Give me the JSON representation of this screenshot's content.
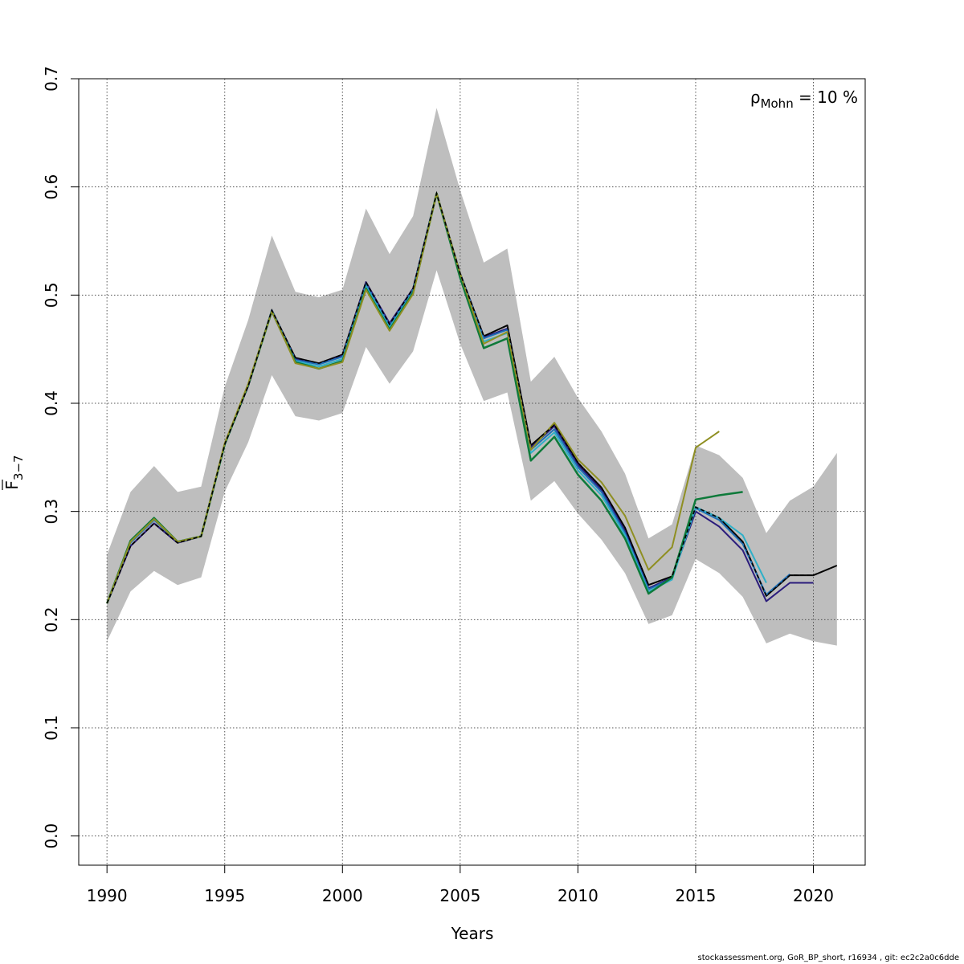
{
  "chart_data": {
    "type": "line",
    "xlabel": "Years",
    "ylabel": "F",
    "ylabel_subscript": "3−7",
    "xlim": [
      1988.8,
      2022.2
    ],
    "ylim": [
      -0.027,
      0.7
    ],
    "x_ticks": [
      1990,
      1995,
      2000,
      2005,
      2010,
      2015,
      2020
    ],
    "y_ticks": [
      0.0,
      0.1,
      0.2,
      0.3,
      0.4,
      0.5,
      0.6,
      0.7
    ],
    "x_tick_labels": [
      "1990",
      "1995",
      "2000",
      "2005",
      "2010",
      "2015",
      "2020"
    ],
    "y_tick_labels": [
      "0.0",
      "0.1",
      "0.2",
      "0.3",
      "0.4",
      "0.5",
      "0.6",
      "0.7"
    ],
    "grid": true,
    "annotation": {
      "symbol": "ρ",
      "subscript": "Mohn",
      "text": " = 10 %"
    },
    "confidence_band": {
      "color": "#bebebe",
      "years": [
        1990,
        1991,
        1992,
        1993,
        1994,
        1995,
        1996,
        1997,
        1998,
        1999,
        2000,
        2001,
        2002,
        2003,
        2004,
        2005,
        2006,
        2007,
        2008,
        2009,
        2010,
        2011,
        2012,
        2013,
        2014,
        2015,
        2016,
        2017,
        2018,
        2019,
        2020,
        2021
      ],
      "upper": [
        0.26,
        0.318,
        0.342,
        0.318,
        0.323,
        0.415,
        0.477,
        0.555,
        0.503,
        0.498,
        0.505,
        0.58,
        0.538,
        0.573,
        0.673,
        0.597,
        0.53,
        0.543,
        0.42,
        0.443,
        0.405,
        0.374,
        0.335,
        0.275,
        0.288,
        0.361,
        0.352,
        0.331,
        0.28,
        0.31,
        0.323,
        0.354
      ],
      "lower": [
        0.18,
        0.226,
        0.245,
        0.232,
        0.239,
        0.318,
        0.364,
        0.426,
        0.388,
        0.384,
        0.391,
        0.452,
        0.418,
        0.448,
        0.523,
        0.455,
        0.402,
        0.41,
        0.31,
        0.328,
        0.298,
        0.274,
        0.243,
        0.196,
        0.204,
        0.256,
        0.243,
        0.221,
        0.178,
        0.187,
        0.18,
        0.176
      ]
    },
    "series": [
      {
        "color": "#000000",
        "dashed": true,
        "width": 2,
        "x": [
          1990,
          1991,
          1992,
          1993,
          1994,
          1995,
          1996,
          1997,
          1998,
          1999,
          2000,
          2001,
          2002,
          2003,
          2004,
          2005,
          2006,
          2007,
          2008,
          2009,
          2010,
          2011,
          2012,
          2013,
          2014,
          2015,
          2016,
          2017,
          2018,
          2019,
          2020,
          2021
        ],
        "y": [
          0.215,
          0.268,
          0.289,
          0.271,
          0.277,
          0.362,
          0.416,
          0.486,
          0.442,
          0.437,
          0.445,
          0.512,
          0.473,
          0.506,
          0.594,
          0.52,
          0.462,
          0.472,
          0.361,
          0.38,
          0.345,
          0.322,
          0.285,
          0.232,
          0.24,
          0.304,
          0.294,
          0.272,
          0.222,
          0.241,
          0.241,
          0.25
        ]
      },
      {
        "color": "#2b1c7c",
        "dashed": false,
        "width": 2,
        "x": [
          1990,
          1991,
          1992,
          1993,
          1994,
          1995,
          1996,
          1997,
          1998,
          1999,
          2000,
          2001,
          2002,
          2003,
          2004,
          2005,
          2006,
          2007,
          2008,
          2009,
          2010,
          2011,
          2012,
          2013,
          2014,
          2015,
          2016,
          2017,
          2018,
          2019,
          2020
        ],
        "y": [
          0.215,
          0.268,
          0.289,
          0.271,
          0.277,
          0.362,
          0.416,
          0.486,
          0.441,
          0.436,
          0.444,
          0.512,
          0.474,
          0.506,
          0.594,
          0.52,
          0.461,
          0.469,
          0.359,
          0.379,
          0.343,
          0.32,
          0.282,
          0.229,
          0.239,
          0.3,
          0.286,
          0.264,
          0.217,
          0.234,
          0.234
        ]
      },
      {
        "color": "#1f6fb5",
        "dashed": false,
        "width": 2,
        "x": [
          1990,
          1991,
          1992,
          1993,
          1994,
          1995,
          1996,
          1997,
          1998,
          1999,
          2000,
          2001,
          2002,
          2003,
          2004,
          2005,
          2006,
          2007,
          2008,
          2009,
          2010,
          2011,
          2012,
          2013,
          2014,
          2015,
          2016,
          2017,
          2018,
          2019
        ],
        "y": [
          0.215,
          0.271,
          0.292,
          0.272,
          0.277,
          0.362,
          0.417,
          0.486,
          0.44,
          0.436,
          0.443,
          0.51,
          0.472,
          0.505,
          0.594,
          0.52,
          0.46,
          0.468,
          0.357,
          0.376,
          0.341,
          0.318,
          0.28,
          0.228,
          0.238,
          0.303,
          0.292,
          0.27,
          0.223,
          0.242
        ]
      },
      {
        "color": "#2fb0c8",
        "dashed": false,
        "width": 2,
        "x": [
          1990,
          1991,
          1992,
          1993,
          1994,
          1995,
          1996,
          1997,
          1998,
          1999,
          2000,
          2001,
          2002,
          2003,
          2004,
          2005,
          2006,
          2007,
          2008,
          2009,
          2010,
          2011,
          2012,
          2013,
          2014,
          2015,
          2016,
          2017,
          2018
        ],
        "y": [
          0.215,
          0.272,
          0.293,
          0.272,
          0.277,
          0.362,
          0.417,
          0.485,
          0.439,
          0.434,
          0.441,
          0.508,
          0.47,
          0.503,
          0.594,
          0.518,
          0.457,
          0.465,
          0.354,
          0.373,
          0.338,
          0.315,
          0.278,
          0.226,
          0.237,
          0.304,
          0.294,
          0.278,
          0.234
        ]
      },
      {
        "color": "#0e7a3a",
        "dashed": false,
        "width": 2.5,
        "x": [
          1990,
          1991,
          1992,
          1993,
          1994,
          1995,
          1996,
          1997,
          1998,
          1999,
          2000,
          2001,
          2002,
          2003,
          2004,
          2005,
          2006,
          2007,
          2008,
          2009,
          2010,
          2011,
          2012,
          2013,
          2014,
          2015,
          2016,
          2017
        ],
        "y": [
          0.215,
          0.273,
          0.294,
          0.272,
          0.277,
          0.362,
          0.417,
          0.485,
          0.438,
          0.432,
          0.439,
          0.506,
          0.468,
          0.502,
          0.594,
          0.516,
          0.451,
          0.46,
          0.347,
          0.369,
          0.334,
          0.31,
          0.275,
          0.224,
          0.239,
          0.311,
          0.315,
          0.318
        ]
      },
      {
        "color": "#8f8f22",
        "dashed": false,
        "width": 2,
        "x": [
          1990,
          1991,
          1992,
          1993,
          1994,
          1995,
          1996,
          1997,
          1998,
          1999,
          2000,
          2001,
          2002,
          2003,
          2004,
          2005,
          2006,
          2007,
          2008,
          2009,
          2010,
          2011,
          2012,
          2013,
          2014,
          2015,
          2016
        ],
        "y": [
          0.215,
          0.272,
          0.293,
          0.272,
          0.277,
          0.363,
          0.418,
          0.485,
          0.437,
          0.432,
          0.438,
          0.505,
          0.467,
          0.501,
          0.594,
          0.52,
          0.455,
          0.466,
          0.357,
          0.382,
          0.348,
          0.327,
          0.296,
          0.246,
          0.267,
          0.359,
          0.374
        ]
      }
    ]
  },
  "footer": "stockassessment.org, GoR_BP_short, r16934 , git: ec2c2a0c6dde"
}
